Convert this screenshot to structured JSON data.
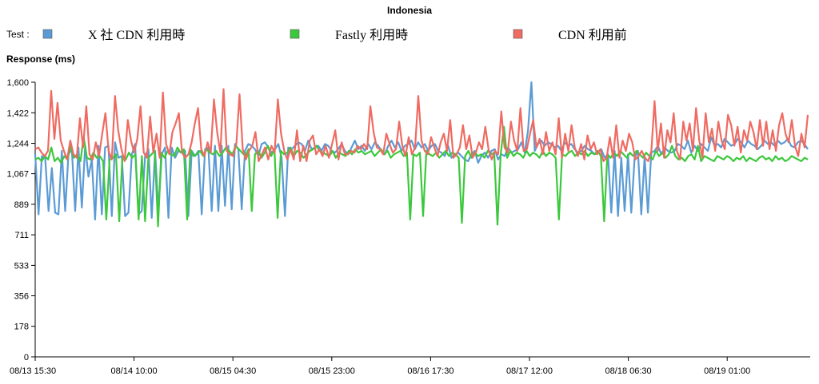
{
  "chart_data": {
    "type": "line",
    "title": "Indonesia",
    "ylabel": "Response (ms)",
    "legend_prefix": "Test :",
    "legend_position": "top",
    "ylim": [
      0,
      1600
    ],
    "y_ticks": [
      "0",
      "178",
      "356",
      "533",
      "711",
      "889",
      "1,067",
      "1,244",
      "1,422",
      "1,600"
    ],
    "y_tick_values": [
      0,
      178,
      356,
      533,
      711,
      889,
      1067,
      1244,
      1422,
      1600
    ],
    "x_ticks": [
      "08/13 15:30",
      "08/14 10:00",
      "08/15 04:30",
      "08/15 23:00",
      "08/16 17:30",
      "08/17 12:00",
      "08/18 06:30",
      "08/19 01:00"
    ],
    "grid": false,
    "series": [
      {
        "name": "X 社 CDN 利用時",
        "color": "#5b9bd5",
        "values": [
          1180,
          830,
          1170,
          1160,
          850,
          1100,
          840,
          830,
          1200,
          850,
          1180,
          1210,
          850,
          1220,
          870,
          1230,
          1050,
          1150,
          800,
          1230,
          830,
          1220,
          1230,
          820,
          1250,
          1160,
          1170,
          820,
          840,
          1180,
          1240,
          830,
          850,
          1170,
          1210,
          810,
          1200,
          850,
          1180,
          1220,
          810,
          1220,
          1160,
          1200,
          1190,
          1200,
          820,
          1200,
          1170,
          1200,
          830,
          1210,
          1220,
          850,
          1230,
          850,
          1230,
          880,
          1230,
          860,
          1240,
          1210,
          860,
          1200,
          1240,
          1230,
          1210,
          1170,
          1240,
          1250,
          1220,
          1190,
          1210,
          1240,
          1160,
          820,
          1220,
          1210,
          1230,
          1250,
          1240,
          1200,
          1260,
          1210,
          1220,
          1230,
          1200,
          1240,
          1230,
          1200,
          1190,
          1210,
          1240,
          1200,
          1180,
          1220,
          1260,
          1210,
          1230,
          1200,
          1240,
          1210,
          1250,
          1230,
          1200,
          1180,
          1230,
          1260,
          1220,
          1250,
          1200,
          1230,
          1240,
          1260,
          1210,
          1250,
          1220,
          1240,
          1200,
          1230,
          1240,
          1200,
          1190,
          1170,
          1230,
          1160,
          1180,
          1190,
          1170,
          1150,
          1140,
          1180,
          1200,
          1130,
          1170,
          1190,
          1160,
          1200,
          1210,
          1150,
          1180,
          1170,
          1220,
          1190,
          1200,
          1210,
          1250,
          1190,
          1320,
          1600,
          1200,
          1240,
          1260,
          1230,
          1250,
          1240,
          1220,
          1230,
          1200,
          1250,
          1230,
          1240,
          1210,
          1190,
          1200,
          1230,
          1210,
          1200,
          1180,
          1190,
          1210,
          1160,
          1180,
          840,
          1200,
          820,
          1160,
          850,
          1180,
          840,
          1160,
          1200,
          830,
          1170,
          840,
          1190,
          1200,
          1230,
          1180,
          1220,
          1200,
          1190,
          1200,
          1240,
          1230,
          1210,
          1260,
          1190,
          1230,
          1200,
          1240,
          1220,
          1200,
          1280,
          1230,
          1240,
          1220,
          1270,
          1250,
          1230,
          1240,
          1270,
          1250,
          1220,
          1260,
          1240,
          1230,
          1210,
          1230,
          1260,
          1240,
          1250,
          1230,
          1260,
          1240,
          1250,
          1270,
          1230,
          1220,
          1250,
          1260,
          1240,
          1210
        ]
      },
      {
        "name": "Fastly 利用時",
        "color": "#3cc83c",
        "values": [
          1150,
          1160,
          1140,
          1170,
          1150,
          1220,
          1140,
          1160,
          1130,
          1170,
          1150,
          1230,
          1160,
          1180,
          1140,
          1280,
          1160,
          1150,
          1190,
          1160,
          1170,
          1140,
          800,
          1150,
          1160,
          1180,
          790,
          1170,
          1150,
          1190,
          1160,
          1180,
          800,
          1170,
          790,
          1160,
          1180,
          1200,
          760,
          1190,
          1160,
          1200,
          1180,
          1170,
          1220,
          1190,
          1210,
          800,
          1210,
          1170,
          1180,
          1200,
          1170,
          1210,
          1190,
          1180,
          1200,
          1170,
          1190,
          1220,
          1200,
          1180,
          1230,
          1210,
          1190,
          1170,
          1210,
          850,
          1180,
          1200,
          1160,
          1190,
          1230,
          1170,
          1210,
          810,
          1200,
          1180,
          1190,
          1220,
          1170,
          1200,
          1190,
          1160,
          1180,
          1200,
          1210,
          1230,
          1200,
          1190,
          1180,
          1170,
          1200,
          1160,
          1190,
          1180,
          1170,
          1200,
          1180,
          1210,
          1190,
          1200,
          1180,
          1190,
          1200,
          1170,
          1190,
          1210,
          1180,
          1200,
          1160,
          1180,
          1190,
          1200,
          1170,
          1190,
          800,
          1180,
          1170,
          1190,
          820,
          1200,
          1180,
          1170,
          1190,
          1160,
          1180,
          1200,
          1170,
          1190,
          1180,
          1160,
          780,
          1170,
          1200,
          1160,
          1190,
          1170,
          1180,
          1160,
          1200,
          1180,
          1190,
          770,
          1180,
          1340,
          1160,
          1200,
          1170,
          1190,
          1180,
          1160,
          1200,
          1170,
          1190,
          1180,
          1160,
          1200,
          1170,
          1190,
          1180,
          1160,
          800,
          1180,
          1170,
          1190,
          1200,
          1170,
          1190,
          1180,
          1200,
          1170,
          1190,
          1180,
          1200,
          1170,
          790,
          1180,
          1160,
          1190,
          1170,
          1200,
          1180,
          1160,
          1190,
          1170,
          1200,
          1180,
          1160,
          1190,
          1170,
          1150,
          1200,
          1170,
          1190,
          1160,
          1180,
          1230,
          1170,
          1150,
          1160,
          1140,
          1170,
          1180,
          1150,
          1230,
          1140,
          1170,
          1160,
          1150,
          1140,
          1170,
          1160,
          1150,
          1170,
          1160,
          1140,
          1160,
          1150,
          1170,
          1140,
          1160,
          1150,
          1140,
          1160,
          1170,
          1150,
          1160,
          1140,
          1170,
          1150,
          1160,
          1140,
          1150,
          1170,
          1160,
          1150,
          1140,
          1160,
          1150
        ]
      },
      {
        "name": "CDN 利用前",
        "color": "#ef6b62",
        "values": [
          1210,
          1220,
          1190,
          1170,
          1200,
          1550,
          1270,
          1480,
          1260,
          1200,
          1150,
          1260,
          1180,
          1160,
          1390,
          1220,
          1460,
          1180,
          1150,
          1250,
          1170,
          1300,
          1420,
          1200,
          1150,
          1520,
          1320,
          1210,
          1140,
          1380,
          1260,
          1190,
          1270,
          1460,
          1190,
          1160,
          1400,
          1190,
          1300,
          1160,
          1540,
          1240,
          1180,
          1310,
          1360,
          1420,
          1190,
          1160,
          1180,
          1250,
          1360,
          1450,
          1210,
          1170,
          1250,
          1190,
          1500,
          1310,
          1190,
          1560,
          1200,
          1180,
          1170,
          1240,
          1530,
          1210,
          1150,
          1200,
          1230,
          1310,
          1140,
          1180,
          1220,
          1150,
          1230,
          1190,
          1500,
          1300,
          1200,
          1150,
          1210,
          1150,
          1320,
          1140,
          1230,
          1140,
          1260,
          1290,
          1180,
          1210,
          1170,
          1230,
          1160,
          1240,
          1320,
          1150,
          1250,
          1180,
          1180,
          1200,
          1190,
          1230,
          1210,
          1240,
          1210,
          1460,
          1310,
          1220,
          1210,
          1180,
          1300,
          1240,
          1190,
          1210,
          1370,
          1230,
          1170,
          1280,
          1180,
          1220,
          1520,
          1260,
          1200,
          1180,
          1280,
          1220,
          1170,
          1250,
          1300,
          1200,
          1380,
          1160,
          1180,
          1220,
          1350,
          1210,
          1290,
          1160,
          1190,
          1250,
          1210,
          1340,
          1210,
          1150,
          1200,
          1180,
          1430,
          1220,
          1190,
          1370,
          1260,
          1200,
          1450,
          1200,
          1210,
          1300,
          1380,
          1220,
          1270,
          1180,
          1310,
          1200,
          1250,
          1180,
          1390,
          1160,
          1300,
          1200,
          1350,
          1220,
          1170,
          1240,
          1150,
          1290,
          1210,
          1250,
          1180,
          1210,
          1140,
          1160,
          1280,
          1160,
          1350,
          1160,
          1260,
          1200,
          1300,
          1250,
          1150,
          1170,
          1200,
          1160,
          1140,
          1200,
          1490,
          1200,
          1360,
          1160,
          1320,
          1250,
          1420,
          1200,
          1150,
          1370,
          1260,
          1360,
          1200,
          1450,
          1260,
          1160,
          1420,
          1250,
          1330,
          1200,
          1370,
          1260,
          1210,
          1410,
          1350,
          1230,
          1340,
          1190,
          1320,
          1260,
          1370,
          1310,
          1210,
          1380,
          1230,
          1370,
          1210,
          1320,
          1200,
          1350,
          1420,
          1300,
          1250,
          1380,
          1230,
          1170,
          1300,
          1220,
          1410
        ]
      }
    ]
  }
}
